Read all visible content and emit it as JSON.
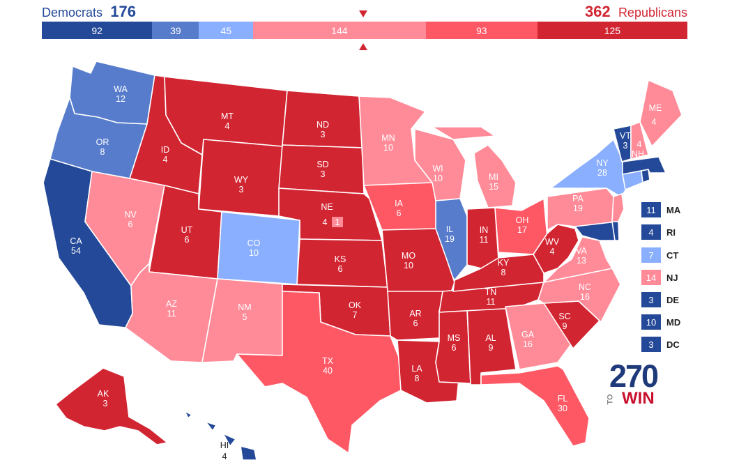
{
  "header": {
    "dem_label": "Democrats",
    "dem_total": "176",
    "rep_total": "362",
    "rep_label": "Republicans"
  },
  "bar": [
    {
      "value": "92",
      "color": "#244999"
    },
    {
      "value": "39",
      "color": "#577ccc"
    },
    {
      "value": "45",
      "color": "#8aafff"
    },
    {
      "value": "144",
      "color": "#ff8b98"
    },
    {
      "value": "93",
      "color": "#ff5865"
    },
    {
      "value": "125",
      "color": "#d22532"
    }
  ],
  "colors": {
    "solid_d": "#244999",
    "likely_d": "#577ccc",
    "lean_d": "#8aafff",
    "lean_r": "#ff8b98",
    "likely_r": "#ff5865",
    "solid_r": "#d22532"
  },
  "states": {
    "WA": {
      "abbr": "WA",
      "votes": "12"
    },
    "OR": {
      "abbr": "OR",
      "votes": "8"
    },
    "CA": {
      "abbr": "CA",
      "votes": "54"
    },
    "NV": {
      "abbr": "NV",
      "votes": "6"
    },
    "ID": {
      "abbr": "ID",
      "votes": "4"
    },
    "MT": {
      "abbr": "MT",
      "votes": "4"
    },
    "WY": {
      "abbr": "WY",
      "votes": "3"
    },
    "UT": {
      "abbr": "UT",
      "votes": "6"
    },
    "AZ": {
      "abbr": "AZ",
      "votes": "11"
    },
    "CO": {
      "abbr": "CO",
      "votes": "10"
    },
    "NM": {
      "abbr": "NM",
      "votes": "5"
    },
    "ND": {
      "abbr": "ND",
      "votes": "3"
    },
    "SD": {
      "abbr": "SD",
      "votes": "3"
    },
    "NE": {
      "abbr": "NE",
      "votes": "4",
      "extra": "1"
    },
    "KS": {
      "abbr": "KS",
      "votes": "6"
    },
    "OK": {
      "abbr": "OK",
      "votes": "7"
    },
    "TX": {
      "abbr": "TX",
      "votes": "40"
    },
    "MN": {
      "abbr": "MN",
      "votes": "10"
    },
    "IA": {
      "abbr": "IA",
      "votes": "6"
    },
    "MO": {
      "abbr": "MO",
      "votes": "10"
    },
    "AR": {
      "abbr": "AR",
      "votes": "6"
    },
    "LA": {
      "abbr": "LA",
      "votes": "8"
    },
    "WI": {
      "abbr": "WI",
      "votes": "10"
    },
    "IL": {
      "abbr": "IL",
      "votes": "19"
    },
    "MI": {
      "abbr": "MI",
      "votes": "15"
    },
    "IN": {
      "abbr": "IN",
      "votes": "11"
    },
    "OH": {
      "abbr": "OH",
      "votes": "17"
    },
    "KY": {
      "abbr": "KY",
      "votes": "8"
    },
    "TN": {
      "abbr": "TN",
      "votes": "11"
    },
    "MS": {
      "abbr": "MS",
      "votes": "6"
    },
    "AL": {
      "abbr": "AL",
      "votes": "9"
    },
    "GA": {
      "abbr": "GA",
      "votes": "16"
    },
    "FL": {
      "abbr": "FL",
      "votes": "30"
    },
    "SC": {
      "abbr": "SC",
      "votes": "9"
    },
    "NC": {
      "abbr": "NC",
      "votes": "16"
    },
    "VA": {
      "abbr": "VA",
      "votes": "13"
    },
    "WV": {
      "abbr": "WV",
      "votes": "4"
    },
    "PA": {
      "abbr": "PA",
      "votes": "19"
    },
    "NY": {
      "abbr": "NY",
      "votes": "28"
    },
    "VT": {
      "abbr": "VT",
      "votes": "3"
    },
    "NH": {
      "abbr": "NH",
      "votes": "4"
    },
    "ME": {
      "abbr": "ME",
      "votes": "4"
    },
    "AK": {
      "abbr": "AK",
      "votes": "3"
    },
    "HI": {
      "abbr": "HI",
      "votes": "4"
    }
  },
  "small_states": [
    {
      "abbr": "MA",
      "votes": "11",
      "color": "#244999"
    },
    {
      "abbr": "RI",
      "votes": "4",
      "color": "#244999"
    },
    {
      "abbr": "CT",
      "votes": "7",
      "color": "#8aafff"
    },
    {
      "abbr": "NJ",
      "votes": "14",
      "color": "#ff8b98"
    },
    {
      "abbr": "DE",
      "votes": "3",
      "color": "#244999"
    },
    {
      "abbr": "MD",
      "votes": "10",
      "color": "#244999"
    },
    {
      "abbr": "DC",
      "votes": "3",
      "color": "#244999"
    }
  ],
  "logo": {
    "number": "270",
    "to": "TO",
    "win": "WIN"
  }
}
